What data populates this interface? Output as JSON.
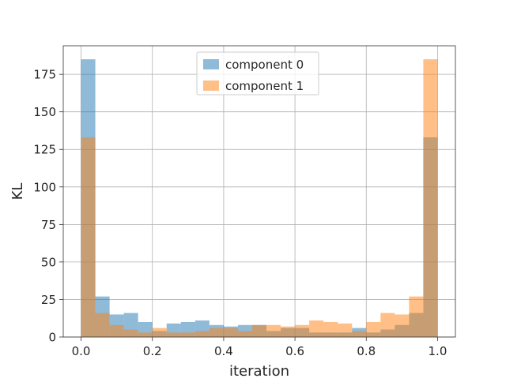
{
  "chart_data": {
    "type": "histogram",
    "title": "",
    "xlabel": "iteration",
    "ylabel": "KL",
    "xlim": [
      -0.05,
      1.05
    ],
    "ylim": [
      0,
      194
    ],
    "grid": true,
    "legend_position": "top-center",
    "xticks": [
      "0.0",
      "0.2",
      "0.4",
      "0.6",
      "0.8",
      "1.0"
    ],
    "yticks": [
      "0",
      "25",
      "50",
      "75",
      "100",
      "125",
      "150",
      "175"
    ],
    "bins": {
      "start": 0.0,
      "end": 1.0,
      "count": 25
    },
    "series": [
      {
        "name": "component 0",
        "color": "#1f77b4",
        "alpha": 0.5,
        "counts": [
          185,
          27,
          15,
          16,
          10,
          4,
          9,
          10,
          11,
          8,
          7,
          8,
          8,
          4,
          6,
          6,
          3,
          3,
          3,
          6,
          3,
          5,
          8,
          16,
          133
        ]
      },
      {
        "name": "component 1",
        "color": "#ff7f0e",
        "alpha": 0.5,
        "counts": [
          133,
          16,
          8,
          5,
          3,
          6,
          3,
          3,
          4,
          6,
          6,
          4,
          8,
          8,
          7,
          8,
          11,
          10,
          9,
          4,
          10,
          16,
          15,
          27,
          185
        ]
      }
    ]
  }
}
